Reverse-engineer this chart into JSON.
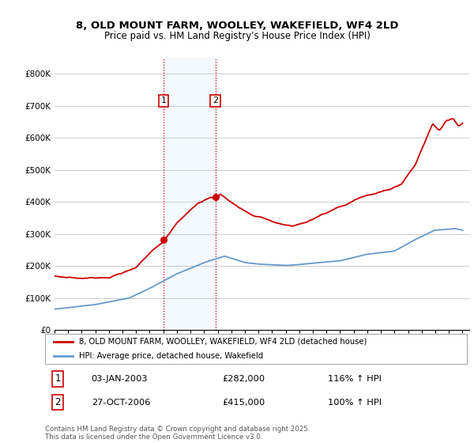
{
  "title_line1": "8, OLD MOUNT FARM, WOOLLEY, WAKEFIELD, WF4 2LD",
  "title_line2": "Price paid vs. HM Land Registry's House Price Index (HPI)",
  "background_color": "#ffffff",
  "plot_bg_color": "#ffffff",
  "grid_color": "#cccccc",
  "house_color": "#cc0000",
  "hpi_color": "#6699cc",
  "sale1_year": 2003.01,
  "sale1_price": 282000,
  "sale1_label": "1",
  "sale1_date": "03-JAN-2003",
  "sale1_hpi": "116% ↑ HPI",
  "sale2_year": 2006.83,
  "sale2_price": 415000,
  "sale2_label": "2",
  "sale2_date": "27-OCT-2006",
  "sale2_hpi": "100% ↑ HPI",
  "legend_label1": "8, OLD MOUNT FARM, WOOLLEY, WAKEFIELD, WF4 2LD (detached house)",
  "legend_label2": "HPI: Average price, detached house, Wakefield",
  "footer": "Contains HM Land Registry data © Crown copyright and database right 2025.\nThis data is licensed under the Open Government Licence v3.0.",
  "ylim_max": 850000,
  "yticks": [
    0,
    100000,
    200000,
    300000,
    400000,
    500000,
    600000,
    700000,
    800000
  ],
  "ytick_labels": [
    "£0",
    "£100K",
    "£200K",
    "£300K",
    "£400K",
    "£500K",
    "£600K",
    "£700K",
    "£800K"
  ],
  "xmin": 1995,
  "xmax": 2025.5
}
